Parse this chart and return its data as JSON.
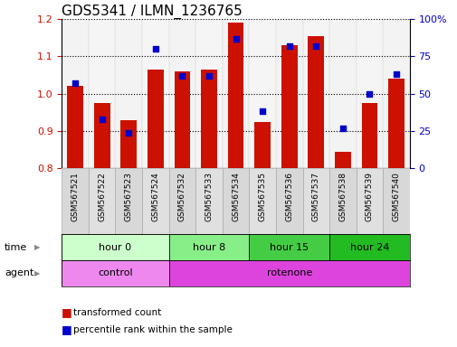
{
  "title": "GDS5341 / ILMN_1236765",
  "samples": [
    "GSM567521",
    "GSM567522",
    "GSM567523",
    "GSM567524",
    "GSM567532",
    "GSM567533",
    "GSM567534",
    "GSM567535",
    "GSM567536",
    "GSM567537",
    "GSM567538",
    "GSM567539",
    "GSM567540"
  ],
  "transformed_count": [
    1.02,
    0.975,
    0.93,
    1.065,
    1.06,
    1.065,
    1.19,
    0.925,
    1.13,
    1.155,
    0.845,
    0.975,
    1.04
  ],
  "percentile_rank": [
    57,
    33,
    24,
    80,
    62,
    62,
    87,
    38,
    82,
    82,
    27,
    50,
    63
  ],
  "ylim_left": [
    0.8,
    1.2
  ],
  "ylim_right": [
    0,
    100
  ],
  "yticks_left": [
    0.8,
    0.9,
    1.0,
    1.1,
    1.2
  ],
  "yticks_right": [
    0,
    25,
    50,
    75,
    100
  ],
  "bar_color": "#cc1100",
  "dot_color": "#0000cc",
  "bar_bottom": 0.8,
  "grid_color": "#000000",
  "time_groups": [
    {
      "label": "hour 0",
      "start": 0,
      "end": 4,
      "color": "#ccffcc"
    },
    {
      "label": "hour 8",
      "start": 4,
      "end": 7,
      "color": "#88ee88"
    },
    {
      "label": "hour 15",
      "start": 7,
      "end": 10,
      "color": "#44cc44"
    },
    {
      "label": "hour 24",
      "start": 10,
      "end": 13,
      "color": "#22bb22"
    }
  ],
  "agent_groups": [
    {
      "label": "control",
      "start": 0,
      "end": 4,
      "color": "#ee88ee"
    },
    {
      "label": "rotenone",
      "start": 4,
      "end": 13,
      "color": "#dd44dd"
    }
  ],
  "legend_red": "transformed count",
  "legend_blue": "percentile rank within the sample",
  "time_label": "time",
  "agent_label": "agent",
  "title_fontsize": 11,
  "tick_fontsize": 8,
  "label_fontsize": 8,
  "row_fontsize": 8,
  "legend_fontsize": 7.5,
  "right_axis_color": "#0000cc",
  "left_axis_color": "#cc1100"
}
